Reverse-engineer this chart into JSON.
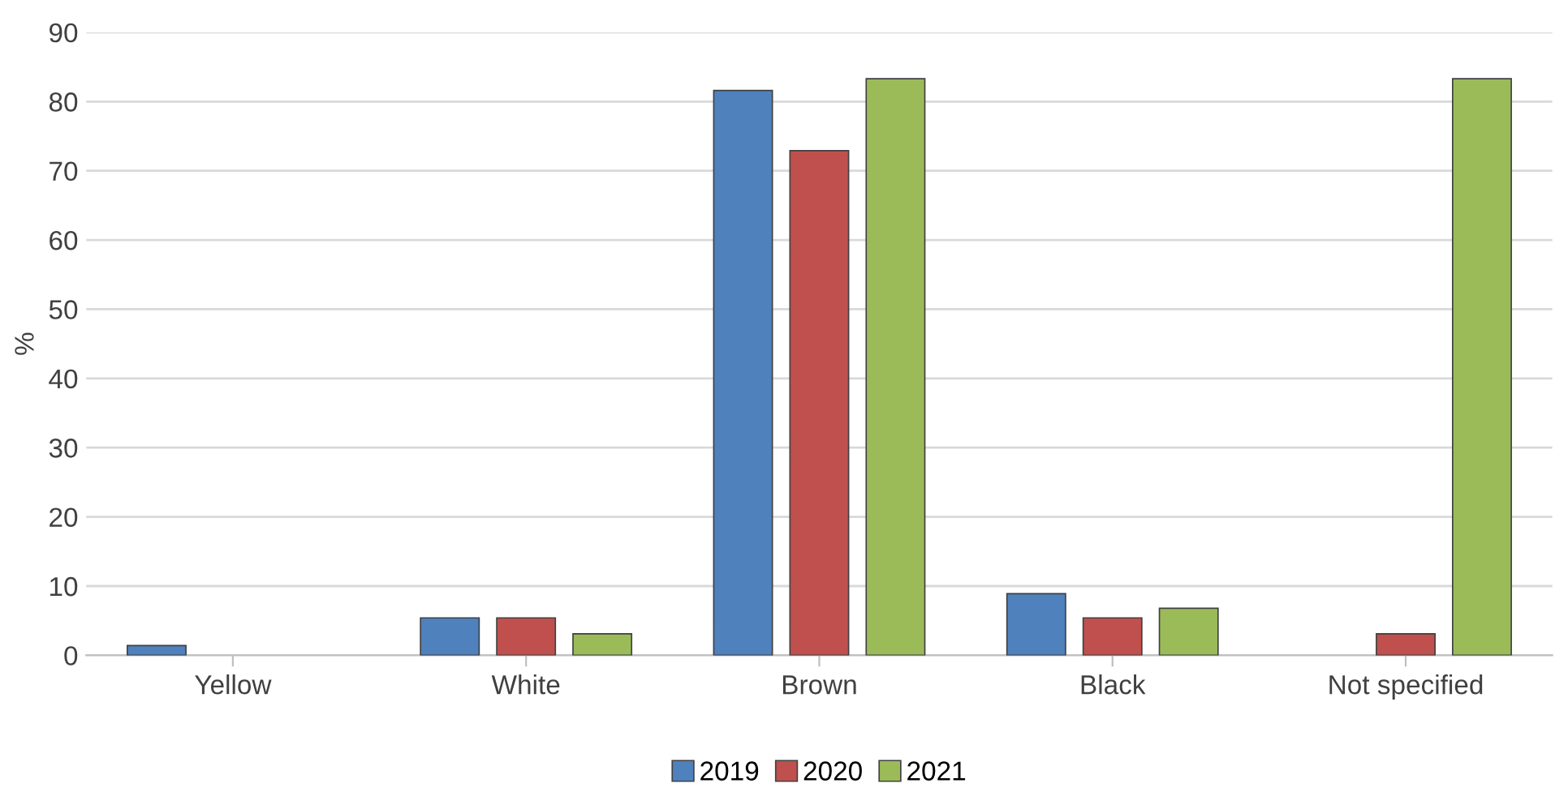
{
  "chart_data": {
    "type": "bar",
    "ylabel": "%",
    "categories": [
      "Yellow",
      "White",
      "Brown",
      "Black",
      "Not specified"
    ],
    "series": [
      {
        "name": "2019",
        "color": "#4f81bd",
        "values": [
          1.4,
          5.4,
          81.6,
          8.9,
          null
        ]
      },
      {
        "name": "2020",
        "color": "#c0504d",
        "values": [
          null,
          5.4,
          72.9,
          5.4,
          3.1
        ]
      },
      {
        "name": "2021",
        "color": "#9bbb59",
        "values": [
          null,
          3.1,
          83.3,
          6.8,
          83.3
        ]
      }
    ],
    "ylim": [
      0,
      90
    ],
    "yticks": [
      0,
      10,
      20,
      30,
      40,
      50,
      60,
      70,
      80,
      90
    ],
    "grid": "y",
    "legend": "bottom"
  }
}
